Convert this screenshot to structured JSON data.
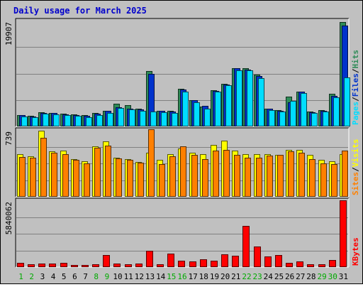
{
  "chart_data": {
    "type": "bar",
    "title": "Daily usage for March 2025",
    "categories": [
      "1",
      "2",
      "3",
      "4",
      "5",
      "6",
      "7",
      "8",
      "9",
      "10",
      "11",
      "12",
      "13",
      "14",
      "15",
      "16",
      "17",
      "18",
      "19",
      "20",
      "21",
      "22",
      "23",
      "24",
      "25",
      "26",
      "27",
      "28",
      "29",
      "30",
      "31"
    ],
    "weekend_days": [
      "1",
      "2",
      "8",
      "9",
      "15",
      "16",
      "22",
      "23",
      "29",
      "30"
    ],
    "panels": [
      {
        "name": "hits-files-pages",
        "ymax_label": "19907",
        "ymax": 19907,
        "legend": [
          "Pages",
          "Files",
          "Hits"
        ],
        "series": [
          {
            "name": "Hits",
            "color": "#2e8b57",
            "values": [
              2200,
              2000,
              2700,
              2600,
              2400,
              2300,
              2100,
              2500,
              3000,
              4300,
              4000,
              3400,
              10400,
              3000,
              2900,
              7100,
              5000,
              3800,
              6800,
              8000,
              11000,
              10900,
              9700,
              3400,
              3100,
              5600,
              6600,
              2800,
              3100,
              6200,
              19700
            ]
          },
          {
            "name": "Files",
            "color": "#0033cc",
            "values": [
              2100,
              1900,
              2600,
              2500,
              2300,
              2200,
              2000,
              2400,
              2900,
              3600,
              3300,
              3200,
              9900,
              2900,
              2800,
              6900,
              4900,
              3900,
              6700,
              7900,
              10900,
              10700,
              9500,
              3300,
              3000,
              4500,
              6500,
              2700,
              3000,
              5700,
              19000
            ]
          },
          {
            "name": "Pages",
            "color": "#00ddff",
            "values": [
              1900,
              1700,
              2400,
              2300,
              2100,
              2000,
              1800,
              2200,
              2600,
              3500,
              3200,
              2900,
              2800,
              2700,
              2600,
              6600,
              4600,
              3300,
              6500,
              7700,
              10600,
              10500,
              9100,
              3100,
              2800,
              4800,
              6300,
              2600,
              2800,
              5500,
              9200
            ]
          }
        ]
      },
      {
        "name": "visits-sites",
        "ymax_label": "739",
        "ymax": 739,
        "legend": [
          "Sites",
          "Visits"
        ],
        "series": [
          {
            "name": "Visits",
            "color": "#ffff00",
            "values": [
              470,
              450,
              735,
              505,
              510,
              420,
              395,
              560,
              615,
              430,
              420,
              385,
              490,
              410,
              470,
              535,
              490,
              475,
              575,
              620,
              510,
              475,
              470,
              470,
              465,
              520,
              520,
              465,
              410,
              395,
              475
            ]
          },
          {
            "name": "Sites",
            "color": "#ff8000",
            "values": [
              440,
              430,
              655,
              490,
              475,
              405,
              370,
              540,
              565,
              425,
              405,
              375,
              745,
              360,
              445,
              555,
              465,
              420,
              510,
              515,
              465,
              435,
              430,
              455,
              465,
              505,
              490,
              420,
              370,
              365,
              510
            ]
          }
        ]
      },
      {
        "name": "kbytes",
        "ymax_label": "5840062",
        "ymax": 5840062,
        "legend": [
          "KBytes"
        ],
        "series": [
          {
            "name": "KBytes",
            "color": "#ff0000",
            "values": [
              400000,
              250000,
              280000,
              340000,
              400000,
              200000,
              180000,
              220000,
              1030000,
              300000,
              270000,
              280000,
              1400000,
              250000,
              1190000,
              580000,
              500000,
              700000,
              560000,
              1140000,
              990000,
              3600000,
              1780000,
              950000,
              1050000,
              380000,
              510000,
              220000,
              220000,
              640000,
              5840062
            ]
          }
        ]
      }
    ]
  }
}
